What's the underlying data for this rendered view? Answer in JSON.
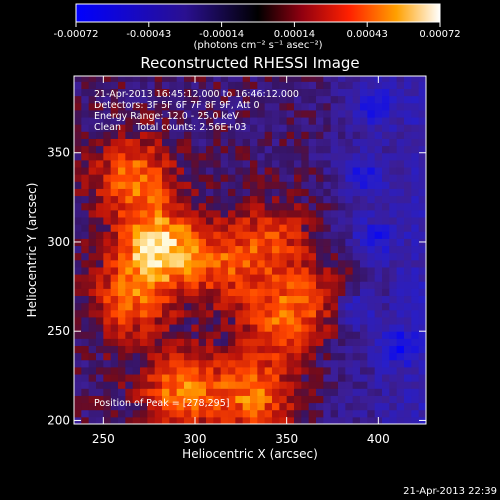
{
  "chart_data": {
    "type": "heatmap",
    "title": "Reconstructed RHESSI Image",
    "xlabel": "Heliocentric X (arcsec)",
    "ylabel": "Heliocentric Y (arcsec)",
    "xlim": [
      234,
      426
    ],
    "ylim": [
      198,
      393
    ],
    "x_ticks": [
      250,
      300,
      350,
      400
    ],
    "y_ticks": [
      200,
      250,
      300,
      350
    ],
    "colorbar": {
      "ticks": [
        "-0.00072",
        "-0.00043",
        "-0.00014",
        "0.00014",
        "0.00043",
        "0.00072"
      ],
      "range": [
        -0.00072,
        0.00072
      ],
      "unit_label": "(photons cm⁻² s⁻¹ asec⁻²)"
    },
    "annotations": [
      "21-Apr-2013 16:45:12.000 to 16:46:12.000",
      "Detectors: 3F 5F 6F 7F 8F 9F, Att 0",
      "Energy Range: 12.0 - 25.0 keV",
      "Clean     Total counts: 2.56E+03"
    ],
    "peak_label": "Position of Peak = [278,295]",
    "footer_timestamp": "21-Apr-2013 22:39",
    "bright_regions": [
      {
        "x": 265,
        "y": 335,
        "relative_intensity": 0.7
      },
      {
        "x": 278,
        "y": 295,
        "relative_intensity": 1.0
      },
      {
        "x": 262,
        "y": 265,
        "relative_intensity": 0.6
      },
      {
        "x": 290,
        "y": 215,
        "relative_intensity": 0.75
      },
      {
        "x": 330,
        "y": 212,
        "relative_intensity": 0.7
      },
      {
        "x": 345,
        "y": 255,
        "relative_intensity": 0.65
      },
      {
        "x": 312,
        "y": 285,
        "relative_intensity": 0.5
      },
      {
        "x": 340,
        "y": 300,
        "relative_intensity": 0.5
      },
      {
        "x": 370,
        "y": 270,
        "relative_intensity": 0.35
      }
    ],
    "negative_regions": [
      {
        "x": 395,
        "y": 375
      },
      {
        "x": 390,
        "y": 335
      },
      {
        "x": 395,
        "y": 300
      },
      {
        "x": 385,
        "y": 260
      },
      {
        "x": 410,
        "y": 240
      }
    ]
  }
}
